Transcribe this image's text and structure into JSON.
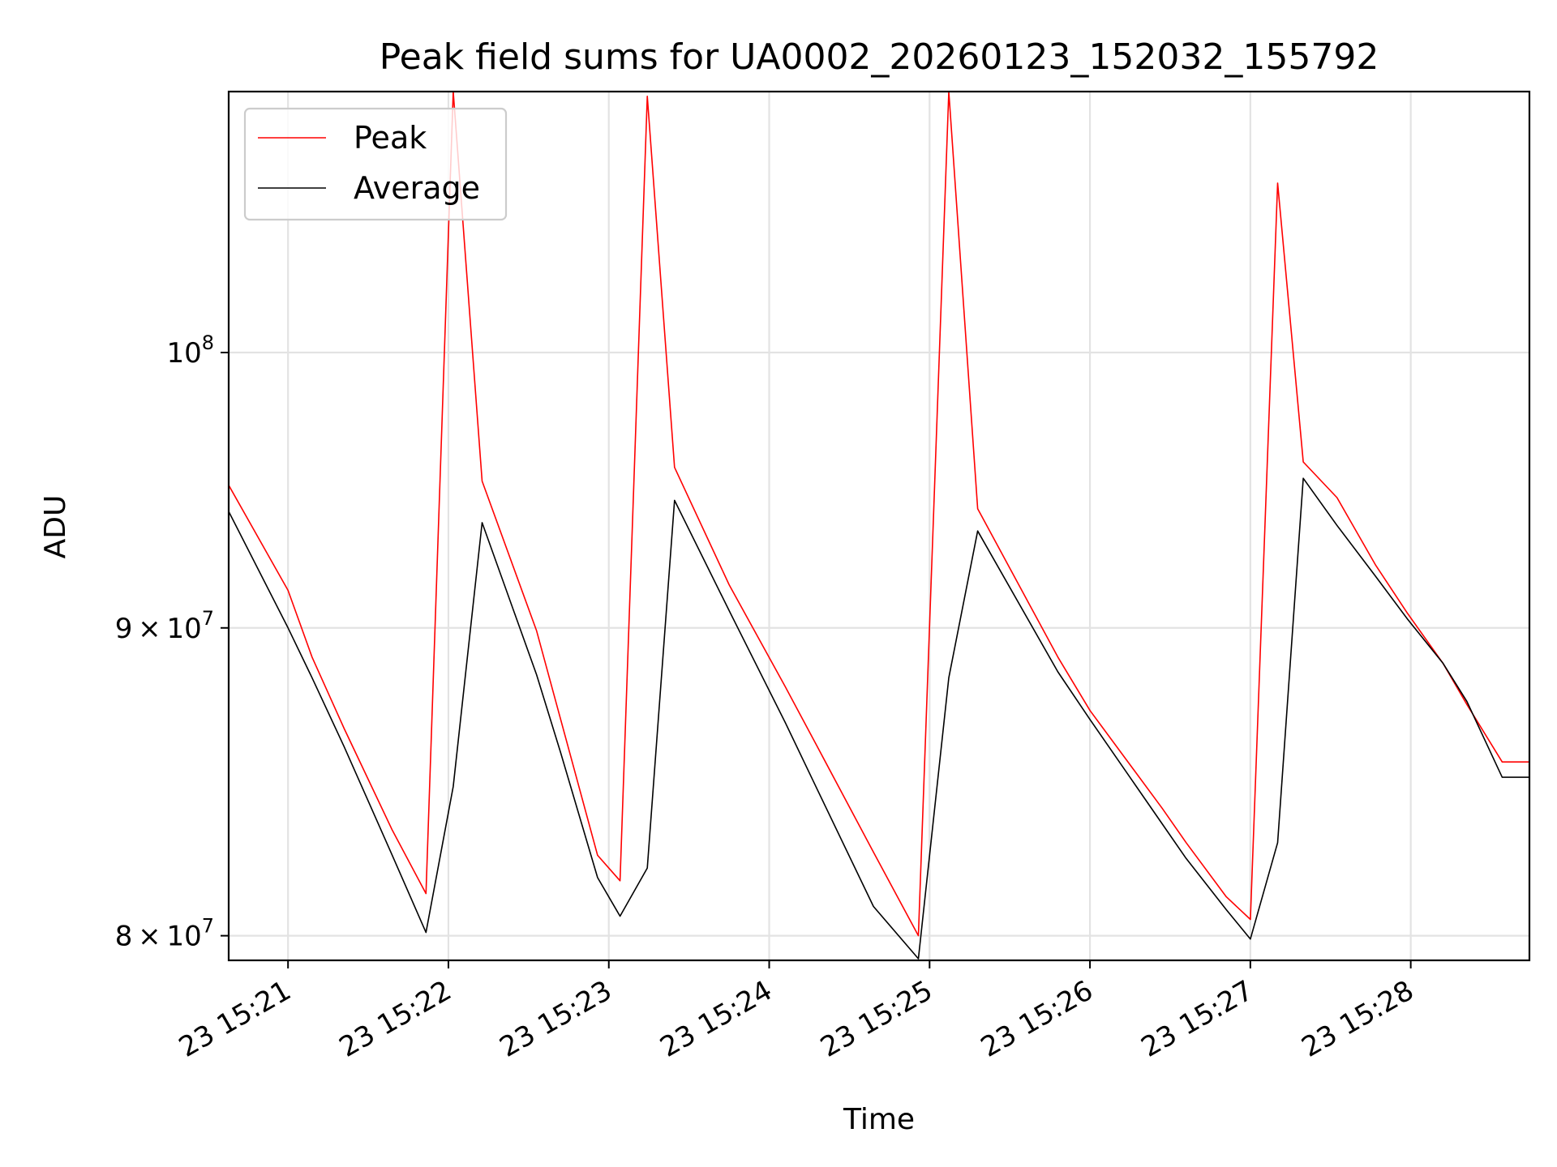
{
  "chart_data": {
    "type": "line",
    "title": "Peak field sums for UA0002_20260123_152032_155792",
    "xlabel": "Time",
    "ylabel": "ADU",
    "yscale": "log",
    "grid": true,
    "legend_position": "upper-left",
    "xlim_minutes": [
      20.63,
      28.74
    ],
    "ylim": [
      79250000,
      110500000
    ],
    "x_ticks": [
      {
        "value": 21,
        "label": "23 15:21"
      },
      {
        "value": 22,
        "label": "23 15:22"
      },
      {
        "value": 23,
        "label": "23 15:23"
      },
      {
        "value": 24,
        "label": "23 15:24"
      },
      {
        "value": 25,
        "label": "23 15:25"
      },
      {
        "value": 26,
        "label": "23 15:26"
      },
      {
        "value": 27,
        "label": "23 15:27"
      },
      {
        "value": 28,
        "label": "23 15:28"
      }
    ],
    "y_ticks": [
      {
        "value": 80000000,
        "mantissa": "8",
        "times": "×",
        "base": "10",
        "exp": "7"
      },
      {
        "value": 90000000,
        "mantissa": "9",
        "times": "×",
        "base": "10",
        "exp": "7"
      },
      {
        "value": 100000000,
        "mantissa": "",
        "times": "",
        "base": "10",
        "exp": "8"
      }
    ],
    "x_unit_note": "minutes after 15:00 on day 23",
    "series": [
      {
        "name": "Peak",
        "color": "#ff0000",
        "points": [
          [
            20.63,
            95050000
          ],
          [
            21.0,
            91300000
          ],
          [
            21.15,
            89000000
          ],
          [
            21.35,
            86600000
          ],
          [
            21.65,
            83300000
          ],
          [
            21.86,
            81300000
          ],
          [
            22.03,
            110500000
          ],
          [
            22.21,
            95200000
          ],
          [
            22.55,
            89900000
          ],
          [
            22.7,
            86900000
          ],
          [
            22.93,
            82500000
          ],
          [
            23.07,
            81700000
          ],
          [
            23.24,
            110300000
          ],
          [
            23.41,
            95700000
          ],
          [
            23.75,
            91500000
          ],
          [
            24.1,
            88000000
          ],
          [
            24.3,
            86000000
          ],
          [
            24.65,
            82600000
          ],
          [
            24.93,
            80000000
          ],
          [
            25.12,
            110500000
          ],
          [
            25.3,
            94200000
          ],
          [
            25.8,
            89000000
          ],
          [
            26.0,
            87200000
          ],
          [
            26.45,
            84000000
          ],
          [
            26.6,
            82900000
          ],
          [
            26.85,
            81200000
          ],
          [
            27.0,
            80500000
          ],
          [
            27.17,
            106700000
          ],
          [
            27.33,
            95900000
          ],
          [
            27.54,
            94600000
          ],
          [
            27.78,
            92200000
          ],
          [
            27.98,
            90500000
          ],
          [
            28.2,
            88800000
          ],
          [
            28.35,
            87400000
          ],
          [
            28.57,
            85500000
          ],
          [
            28.74,
            85500000
          ]
        ]
      },
      {
        "name": "Average",
        "color": "#000000",
        "points": [
          [
            20.63,
            94100000
          ],
          [
            21.0,
            90000000
          ],
          [
            21.15,
            88300000
          ],
          [
            21.35,
            86000000
          ],
          [
            21.65,
            82500000
          ],
          [
            21.86,
            80100000
          ],
          [
            22.03,
            84700000
          ],
          [
            22.21,
            93700000
          ],
          [
            22.55,
            88400000
          ],
          [
            22.7,
            85800000
          ],
          [
            22.93,
            81800000
          ],
          [
            23.07,
            80600000
          ],
          [
            23.24,
            82100000
          ],
          [
            23.41,
            94500000
          ],
          [
            23.75,
            90600000
          ],
          [
            24.1,
            86800000
          ],
          [
            24.3,
            84600000
          ],
          [
            24.65,
            80900000
          ],
          [
            24.93,
            79300000
          ],
          [
            25.12,
            88300000
          ],
          [
            25.3,
            93400000
          ],
          [
            25.8,
            88500000
          ],
          [
            26.0,
            86900000
          ],
          [
            26.45,
            83500000
          ],
          [
            26.6,
            82400000
          ],
          [
            26.85,
            80800000
          ],
          [
            27.0,
            79900000
          ],
          [
            27.17,
            82900000
          ],
          [
            27.33,
            95300000
          ],
          [
            27.54,
            93600000
          ],
          [
            27.78,
            91800000
          ],
          [
            27.98,
            90300000
          ],
          [
            28.2,
            88800000
          ],
          [
            28.35,
            87500000
          ],
          [
            28.57,
            85000000
          ],
          [
            28.74,
            85000000
          ]
        ]
      }
    ]
  }
}
